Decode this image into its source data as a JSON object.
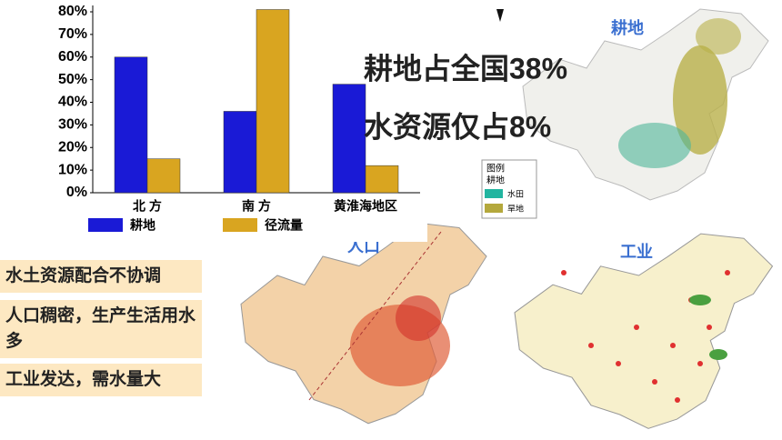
{
  "chart_data": {
    "type": "bar",
    "categories": [
      "北 方",
      "南 方",
      "黄淮海地区"
    ],
    "series": [
      {
        "name": "耕地",
        "color": "#1a1ad6",
        "values": [
          60,
          36,
          48
        ]
      },
      {
        "name": "径流量",
        "color": "#d9a520",
        "values": [
          15,
          81,
          12
        ]
      }
    ],
    "ylim": [
      0,
      80
    ],
    "yticks": [
      {
        "value": 0,
        "label": "0%"
      },
      {
        "value": 10,
        "label": "10%"
      },
      {
        "value": 20,
        "label": "20%"
      },
      {
        "value": 30,
        "label": "30%"
      },
      {
        "value": 40,
        "label": "40%"
      },
      {
        "value": 50,
        "label": "50%"
      },
      {
        "value": 60,
        "label": "60%"
      },
      {
        "value": 70,
        "label": "70%"
      },
      {
        "value": 80,
        "label": "80%"
      }
    ],
    "grid": false
  },
  "headlines": [
    "耕地占全国38%",
    "水资源仅占8%"
  ],
  "reasons": [
    "水土资源配合不协调",
    "人口稠密，生产生活用水多",
    "工业发达，需水量大"
  ],
  "maps": {
    "farmland": "耕地",
    "population": "人口",
    "industry": "工业"
  },
  "farmland_legend": {
    "title": "图例",
    "group": "耕地",
    "items": [
      "水田",
      "旱地"
    ]
  }
}
